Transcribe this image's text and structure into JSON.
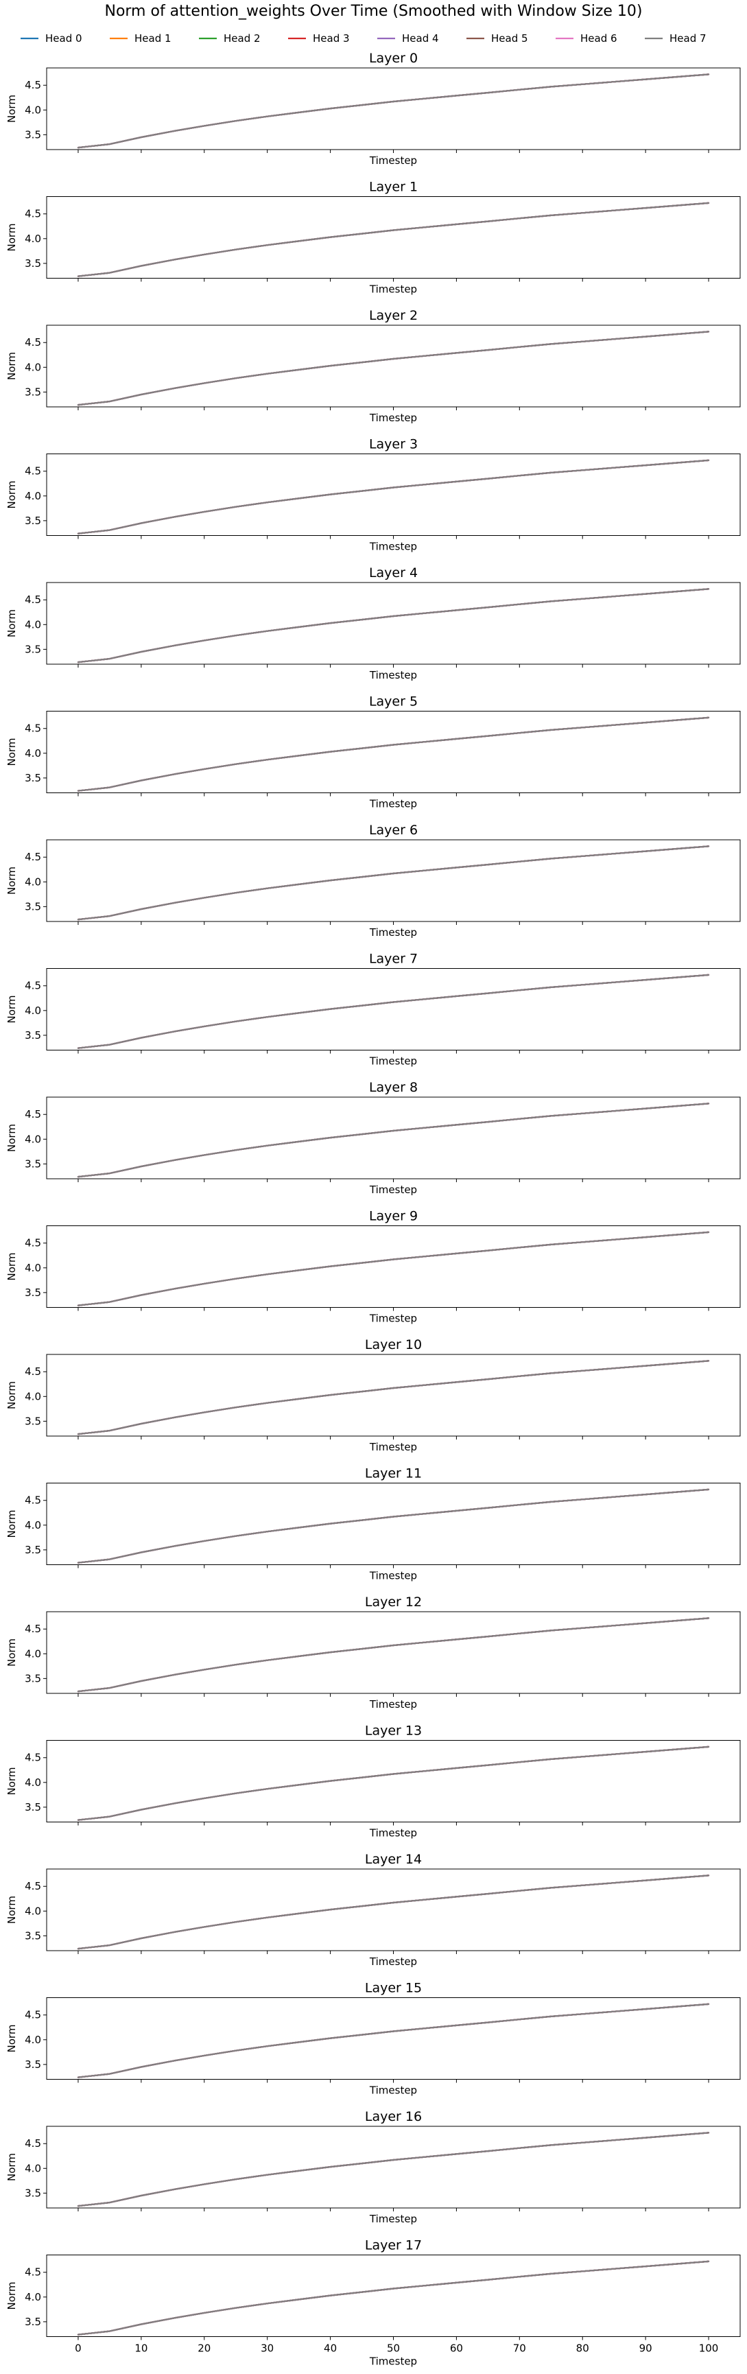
{
  "figure_title": "Norm of attention_weights Over Time (Smoothed with Window Size 10)",
  "chart_data": {
    "type": "line",
    "title": "Norm of attention_weights Over Time (Smoothed with Window Size 10)",
    "legend_position": "top",
    "series_names": [
      "Head 0",
      "Head 1",
      "Head 2",
      "Head 3",
      "Head 4",
      "Head 5",
      "Head 6",
      "Head 7"
    ],
    "series_colors": [
      "#1f77b4",
      "#ff7f0e",
      "#2ca02c",
      "#d62728",
      "#9467bd",
      "#8c564b",
      "#e377c2",
      "#7f7f7f"
    ],
    "xlabel": "Timestep",
    "ylabel": "Norm",
    "xlim": [
      -5,
      105
    ],
    "ylim": [
      3.2,
      4.85
    ],
    "xticks": [
      0,
      10,
      20,
      30,
      40,
      50,
      60,
      70,
      80,
      90,
      100
    ],
    "xtick_labels": [
      "0",
      "10",
      "20",
      "30",
      "40",
      "50",
      "60",
      "70",
      "80",
      "90",
      "100"
    ],
    "yticks": [
      3.5,
      4.0,
      4.5
    ],
    "ytick_labels": [
      "3.5",
      "4.0",
      "4.5"
    ],
    "grid": false,
    "x": [
      0,
      5,
      10,
      15,
      20,
      25,
      30,
      35,
      40,
      45,
      50,
      55,
      60,
      65,
      70,
      75,
      80,
      85,
      90,
      95,
      100
    ],
    "panels": [
      {
        "title": "Layer 0",
        "values": [
          3.24,
          3.31,
          3.45,
          3.57,
          3.68,
          3.78,
          3.87,
          3.95,
          4.03,
          4.1,
          4.17,
          4.23,
          4.29,
          4.35,
          4.41,
          4.47,
          4.52,
          4.57,
          4.62,
          4.67,
          4.72
        ]
      },
      {
        "title": "Layer 1",
        "values": [
          3.24,
          3.31,
          3.45,
          3.57,
          3.68,
          3.78,
          3.87,
          3.95,
          4.03,
          4.1,
          4.17,
          4.23,
          4.29,
          4.35,
          4.41,
          4.47,
          4.52,
          4.57,
          4.62,
          4.67,
          4.72
        ]
      },
      {
        "title": "Layer 2",
        "values": [
          3.24,
          3.31,
          3.45,
          3.57,
          3.68,
          3.78,
          3.87,
          3.95,
          4.03,
          4.1,
          4.17,
          4.23,
          4.29,
          4.35,
          4.41,
          4.47,
          4.52,
          4.57,
          4.62,
          4.67,
          4.72
        ]
      },
      {
        "title": "Layer 3",
        "values": [
          3.24,
          3.31,
          3.45,
          3.57,
          3.68,
          3.78,
          3.87,
          3.95,
          4.03,
          4.1,
          4.17,
          4.23,
          4.29,
          4.35,
          4.41,
          4.47,
          4.52,
          4.57,
          4.62,
          4.67,
          4.72
        ]
      },
      {
        "title": "Layer 4",
        "values": [
          3.24,
          3.31,
          3.45,
          3.57,
          3.68,
          3.78,
          3.87,
          3.95,
          4.03,
          4.1,
          4.17,
          4.23,
          4.29,
          4.35,
          4.41,
          4.47,
          4.52,
          4.57,
          4.62,
          4.67,
          4.72
        ]
      },
      {
        "title": "Layer 5",
        "values": [
          3.24,
          3.31,
          3.45,
          3.57,
          3.68,
          3.78,
          3.87,
          3.95,
          4.03,
          4.1,
          4.17,
          4.23,
          4.29,
          4.35,
          4.41,
          4.47,
          4.52,
          4.57,
          4.62,
          4.67,
          4.72
        ]
      },
      {
        "title": "Layer 6",
        "values": [
          3.24,
          3.31,
          3.45,
          3.57,
          3.68,
          3.78,
          3.87,
          3.95,
          4.03,
          4.1,
          4.17,
          4.23,
          4.29,
          4.35,
          4.41,
          4.47,
          4.52,
          4.57,
          4.62,
          4.67,
          4.72
        ]
      },
      {
        "title": "Layer 7",
        "values": [
          3.24,
          3.31,
          3.45,
          3.57,
          3.68,
          3.78,
          3.87,
          3.95,
          4.03,
          4.1,
          4.17,
          4.23,
          4.29,
          4.35,
          4.41,
          4.47,
          4.52,
          4.57,
          4.62,
          4.67,
          4.72
        ]
      },
      {
        "title": "Layer 8",
        "values": [
          3.24,
          3.31,
          3.45,
          3.57,
          3.68,
          3.78,
          3.87,
          3.95,
          4.03,
          4.1,
          4.17,
          4.23,
          4.29,
          4.35,
          4.41,
          4.47,
          4.52,
          4.57,
          4.62,
          4.67,
          4.72
        ]
      },
      {
        "title": "Layer 9",
        "values": [
          3.24,
          3.31,
          3.45,
          3.57,
          3.68,
          3.78,
          3.87,
          3.95,
          4.03,
          4.1,
          4.17,
          4.23,
          4.29,
          4.35,
          4.41,
          4.47,
          4.52,
          4.57,
          4.62,
          4.67,
          4.72
        ]
      },
      {
        "title": "Layer 10",
        "values": [
          3.24,
          3.31,
          3.45,
          3.57,
          3.68,
          3.78,
          3.87,
          3.95,
          4.03,
          4.1,
          4.17,
          4.23,
          4.29,
          4.35,
          4.41,
          4.47,
          4.52,
          4.57,
          4.62,
          4.67,
          4.72
        ]
      },
      {
        "title": "Layer 11",
        "values": [
          3.24,
          3.31,
          3.45,
          3.57,
          3.68,
          3.78,
          3.87,
          3.95,
          4.03,
          4.1,
          4.17,
          4.23,
          4.29,
          4.35,
          4.41,
          4.47,
          4.52,
          4.57,
          4.62,
          4.67,
          4.72
        ]
      },
      {
        "title": "Layer 12",
        "values": [
          3.24,
          3.31,
          3.45,
          3.57,
          3.68,
          3.78,
          3.87,
          3.95,
          4.03,
          4.1,
          4.17,
          4.23,
          4.29,
          4.35,
          4.41,
          4.47,
          4.52,
          4.57,
          4.62,
          4.67,
          4.72
        ]
      },
      {
        "title": "Layer 13",
        "values": [
          3.24,
          3.31,
          3.45,
          3.57,
          3.68,
          3.78,
          3.87,
          3.95,
          4.03,
          4.1,
          4.17,
          4.23,
          4.29,
          4.35,
          4.41,
          4.47,
          4.52,
          4.57,
          4.62,
          4.67,
          4.72
        ]
      },
      {
        "title": "Layer 14",
        "values": [
          3.24,
          3.31,
          3.45,
          3.57,
          3.68,
          3.78,
          3.87,
          3.95,
          4.03,
          4.1,
          4.17,
          4.23,
          4.29,
          4.35,
          4.41,
          4.47,
          4.52,
          4.57,
          4.62,
          4.67,
          4.72
        ]
      },
      {
        "title": "Layer 15",
        "values": [
          3.24,
          3.31,
          3.45,
          3.57,
          3.68,
          3.78,
          3.87,
          3.95,
          4.03,
          4.1,
          4.17,
          4.23,
          4.29,
          4.35,
          4.41,
          4.47,
          4.52,
          4.57,
          4.62,
          4.67,
          4.72
        ]
      },
      {
        "title": "Layer 16",
        "values": [
          3.24,
          3.31,
          3.45,
          3.57,
          3.68,
          3.78,
          3.87,
          3.95,
          4.03,
          4.1,
          4.17,
          4.23,
          4.29,
          4.35,
          4.41,
          4.47,
          4.52,
          4.57,
          4.62,
          4.67,
          4.72
        ]
      },
      {
        "title": "Layer 17",
        "values": [
          3.24,
          3.31,
          3.45,
          3.57,
          3.68,
          3.78,
          3.87,
          3.95,
          4.03,
          4.1,
          4.17,
          4.23,
          4.29,
          4.35,
          4.41,
          4.47,
          4.52,
          4.57,
          4.62,
          4.67,
          4.72
        ]
      }
    ]
  }
}
